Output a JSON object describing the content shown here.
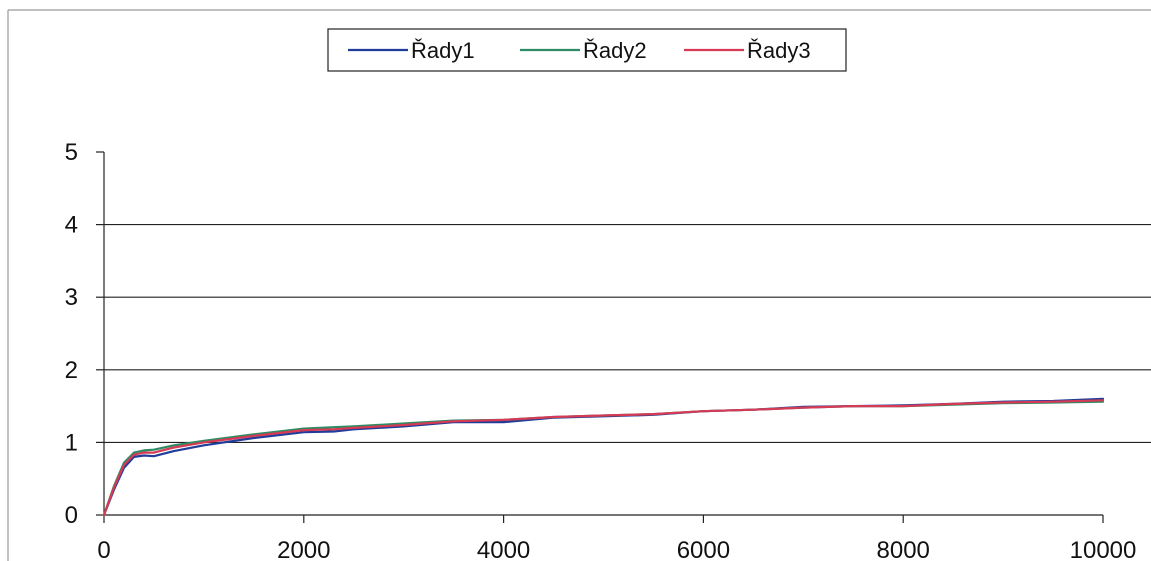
{
  "chart_data": {
    "type": "line",
    "title": "",
    "xlabel": "",
    "ylabel": "",
    "xlim": [
      0,
      10000
    ],
    "ylim": [
      0,
      5
    ],
    "x_ticks": [
      "0",
      "2000",
      "4000",
      "6000",
      "8000",
      "10000"
    ],
    "y_ticks": [
      "0",
      "1",
      "2",
      "3",
      "4",
      "5"
    ],
    "grid": "horizontal",
    "legend_position": "top-center",
    "series": [
      {
        "name": "Řady1",
        "color": "#1f3d99",
        "points": [
          [
            0,
            0
          ],
          [
            100,
            0.35
          ],
          [
            200,
            0.65
          ],
          [
            300,
            0.8
          ],
          [
            400,
            0.82
          ],
          [
            500,
            0.81
          ],
          [
            700,
            0.88
          ],
          [
            1000,
            0.96
          ],
          [
            1500,
            1.06
          ],
          [
            2000,
            1.14
          ],
          [
            2300,
            1.15
          ],
          [
            2500,
            1.18
          ],
          [
            3000,
            1.22
          ],
          [
            3500,
            1.28
          ],
          [
            4000,
            1.28
          ],
          [
            4500,
            1.34
          ],
          [
            5000,
            1.36
          ],
          [
            5500,
            1.38
          ],
          [
            6000,
            1.43
          ],
          [
            6500,
            1.45
          ],
          [
            7000,
            1.49
          ],
          [
            7500,
            1.5
          ],
          [
            8000,
            1.51
          ],
          [
            8500,
            1.53
          ],
          [
            9000,
            1.56
          ],
          [
            9500,
            1.57
          ],
          [
            10000,
            1.6
          ]
        ]
      },
      {
        "name": "Řady2",
        "color": "#2e8b63",
        "points": [
          [
            0,
            0
          ],
          [
            100,
            0.4
          ],
          [
            200,
            0.72
          ],
          [
            300,
            0.86
          ],
          [
            400,
            0.89
          ],
          [
            500,
            0.9
          ],
          [
            700,
            0.96
          ],
          [
            1000,
            1.02
          ],
          [
            1500,
            1.11
          ],
          [
            2000,
            1.19
          ],
          [
            2300,
            1.21
          ],
          [
            2500,
            1.22
          ],
          [
            3000,
            1.26
          ],
          [
            3500,
            1.3
          ],
          [
            4000,
            1.31
          ],
          [
            4500,
            1.35
          ],
          [
            5000,
            1.37
          ],
          [
            5500,
            1.39
          ],
          [
            6000,
            1.43
          ],
          [
            6500,
            1.45
          ],
          [
            7000,
            1.48
          ],
          [
            7500,
            1.5
          ],
          [
            8000,
            1.5
          ],
          [
            8500,
            1.52
          ],
          [
            9000,
            1.54
          ],
          [
            9500,
            1.55
          ],
          [
            10000,
            1.56
          ]
        ]
      },
      {
        "name": "Řady3",
        "color": "#d63a55",
        "points": [
          [
            0,
            0
          ],
          [
            100,
            0.38
          ],
          [
            200,
            0.69
          ],
          [
            300,
            0.83
          ],
          [
            400,
            0.86
          ],
          [
            500,
            0.86
          ],
          [
            700,
            0.93
          ],
          [
            1000,
            1.0
          ],
          [
            1500,
            1.09
          ],
          [
            2000,
            1.17
          ],
          [
            2300,
            1.18
          ],
          [
            2500,
            1.2
          ],
          [
            3000,
            1.24
          ],
          [
            3500,
            1.29
          ],
          [
            4000,
            1.31
          ],
          [
            4500,
            1.35
          ],
          [
            5000,
            1.37
          ],
          [
            5500,
            1.39
          ],
          [
            6000,
            1.43
          ],
          [
            6500,
            1.45
          ],
          [
            7000,
            1.48
          ],
          [
            7500,
            1.5
          ],
          [
            8000,
            1.5
          ],
          [
            8500,
            1.53
          ],
          [
            9000,
            1.55
          ],
          [
            9500,
            1.56
          ],
          [
            10000,
            1.58
          ]
        ]
      }
    ]
  }
}
